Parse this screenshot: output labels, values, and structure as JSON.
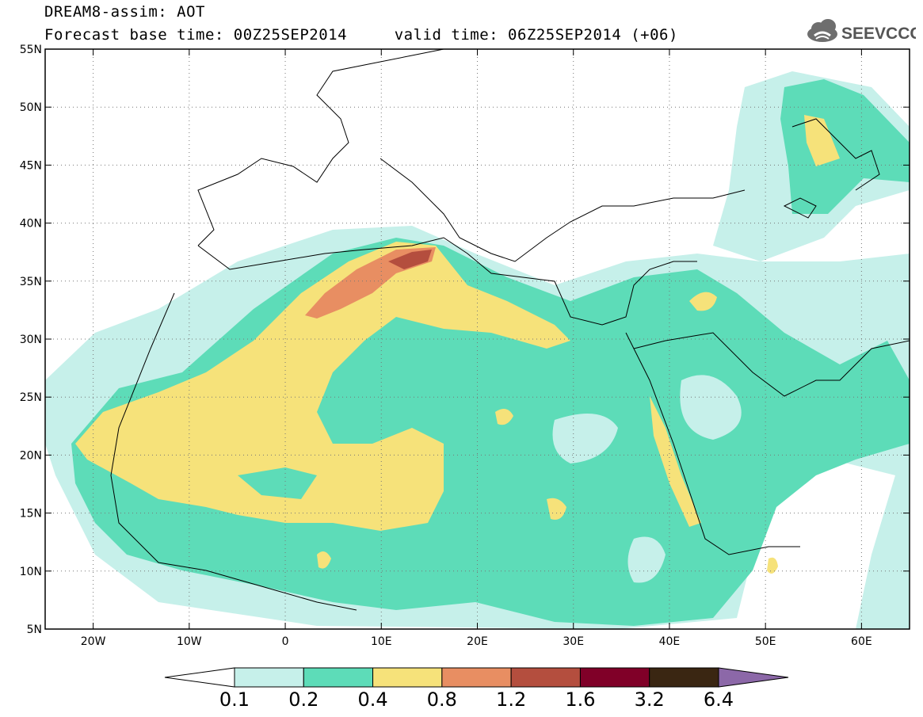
{
  "header": {
    "line1": "DREAM8-assim: AOT",
    "line2": "Forecast base time: 00Z25SEP2014     valid time: 06Z25SEP2014 (+06)"
  },
  "logo": {
    "text": "SEEVCCC",
    "icon": "cloud-icon"
  },
  "map": {
    "lon_range": [
      -25,
      65
    ],
    "lat_range": [
      5,
      55
    ],
    "lat_ticks": [
      {
        "value": 55,
        "label": "55N"
      },
      {
        "value": 50,
        "label": "50N"
      },
      {
        "value": 45,
        "label": "45N"
      },
      {
        "value": 40,
        "label": "40N"
      },
      {
        "value": 35,
        "label": "35N"
      },
      {
        "value": 30,
        "label": "30N"
      },
      {
        "value": 25,
        "label": "25N"
      },
      {
        "value": 20,
        "label": "20N"
      },
      {
        "value": 15,
        "label": "15N"
      },
      {
        "value": 10,
        "label": "10N"
      },
      {
        "value": 5,
        "label": "5N"
      }
    ],
    "lon_ticks": [
      {
        "value": -20,
        "label": "20W"
      },
      {
        "value": -10,
        "label": "10W"
      },
      {
        "value": 0,
        "label": "0"
      },
      {
        "value": 10,
        "label": "10E"
      },
      {
        "value": 20,
        "label": "20E"
      },
      {
        "value": 30,
        "label": "30E"
      },
      {
        "value": 40,
        "label": "40E"
      },
      {
        "value": 50,
        "label": "50E"
      },
      {
        "value": 60,
        "label": "60E"
      }
    ],
    "grid": "dotted"
  },
  "colorbar": {
    "colors": [
      "#ffffff",
      "#c6f0ea",
      "#5ddcb8",
      "#f6e27a",
      "#e88e62",
      "#b44e3e",
      "#800028",
      "#3a2612",
      "#8c68a8"
    ],
    "labels": [
      "0.1",
      "0.2",
      "0.4",
      "0.8",
      "1.2",
      "1.6",
      "3.2",
      "6.4"
    ]
  }
}
